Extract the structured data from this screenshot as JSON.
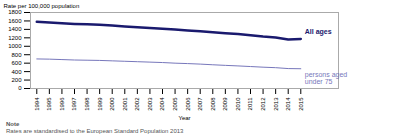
{
  "chart_data": {
    "type": "line",
    "xlabel": "Year",
    "ylabel": "Rate per 100,000 population",
    "x": [
      1994,
      1995,
      1996,
      1997,
      1998,
      1999,
      2000,
      2001,
      2002,
      2003,
      2004,
      2005,
      2006,
      2007,
      2008,
      2009,
      2010,
      2011,
      2012,
      2013,
      2014,
      2015
    ],
    "series": [
      {
        "name": "All ages",
        "color": "#1a1a6e",
        "values": [
          1580,
          1565,
          1545,
          1530,
          1520,
          1510,
          1490,
          1470,
          1450,
          1435,
          1415,
          1395,
          1375,
          1355,
          1330,
          1310,
          1290,
          1260,
          1230,
          1210,
          1160,
          1175
        ]
      },
      {
        "name": "persons aged\nunder 75",
        "color": "#7777bb",
        "values": [
          700,
          695,
          685,
          675,
          670,
          665,
          655,
          645,
          635,
          625,
          615,
          600,
          590,
          578,
          562,
          548,
          535,
          520,
          505,
          493,
          472,
          468
        ]
      }
    ],
    "xlim": [
      1993.5,
      2018.0
    ],
    "xticks": [
      1994,
      1995,
      1996,
      1997,
      1998,
      1999,
      2000,
      2001,
      2002,
      2003,
      2004,
      2005,
      2006,
      2007,
      2008,
      2009,
      2010,
      2011,
      2012,
      2013,
      2014,
      2015
    ],
    "ylim": [
      0,
      1800
    ],
    "yticks": [
      0,
      200,
      400,
      600,
      800,
      1000,
      1200,
      1400,
      1600,
      1800
    ],
    "grid": false,
    "note_title": "Note",
    "note": "Rates are standardised to the European Standard Population 2013"
  }
}
